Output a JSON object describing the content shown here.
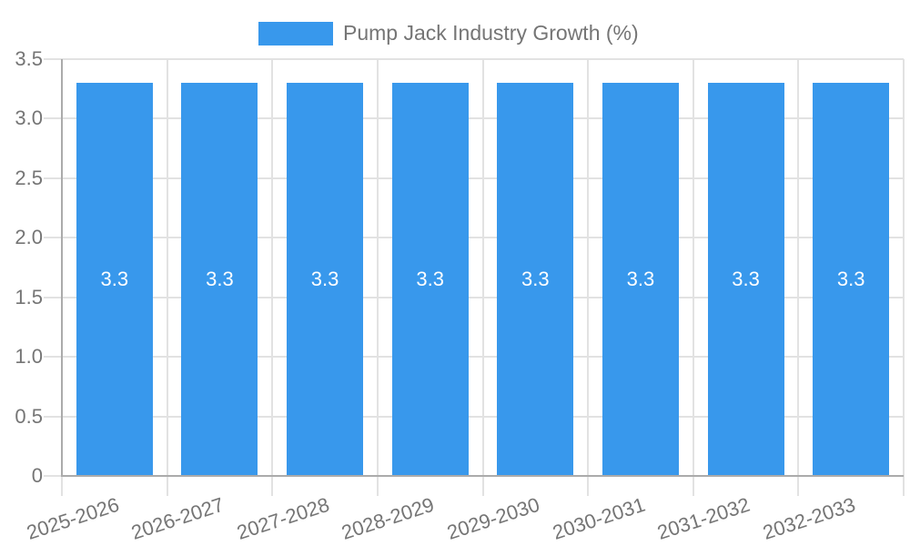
{
  "legend": {
    "label": "Pump Jack Industry Growth (%)",
    "position": "top"
  },
  "colors": {
    "bar": "#3898EC",
    "legend_text": "#757575",
    "tick_text": "#757575",
    "bar_label": "#FFFFFF",
    "gridline": "#E2E2E2",
    "axis": "#ABABAB",
    "background": "#FFFFFF"
  },
  "chart_data": {
    "type": "bar",
    "title": "Pump Jack Industry Growth (%)",
    "xlabel": "",
    "ylabel": "",
    "categories": [
      "2025-2026",
      "2026-2027",
      "2027-2028",
      "2028-2029",
      "2029-2030",
      "2030-2031",
      "2031-2032",
      "2032-2033"
    ],
    "series": [
      {
        "name": "Pump Jack Industry Growth (%)",
        "values": [
          3.3,
          3.3,
          3.3,
          3.3,
          3.3,
          3.3,
          3.3,
          3.3
        ]
      }
    ],
    "bar_labels": [
      "3.3",
      "3.3",
      "3.3",
      "3.3",
      "3.3",
      "3.3",
      "3.3",
      "3.3"
    ],
    "ylim": [
      0,
      3.5
    ],
    "yticks": [
      "0",
      "0.5",
      "1.0",
      "1.5",
      "2.0",
      "2.5",
      "3.0",
      "3.5"
    ],
    "grid": true,
    "legend_position": "top"
  }
}
